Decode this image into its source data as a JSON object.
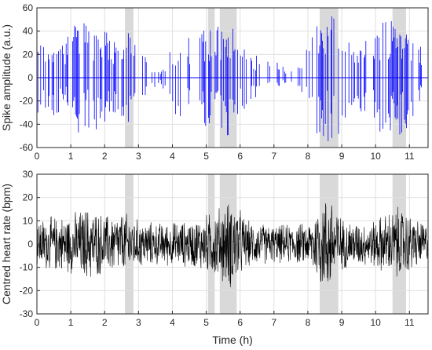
{
  "chart_data": [
    {
      "type": "line",
      "ylabel": "Spike amplitude (a.u.)",
      "xlim": [
        0,
        11.55
      ],
      "ylim": [
        -60,
        60
      ],
      "xticks": [
        "0",
        "1",
        "2",
        "3",
        "4",
        "5",
        "6",
        "7",
        "8",
        "9",
        "10",
        "11"
      ],
      "yticks": [
        "-60",
        "-40",
        "-20",
        "0",
        "20",
        "40",
        "60"
      ],
      "grid": true,
      "series": [
        {
          "color": "#0000ff",
          "style": "spike stems around baseline 0"
        }
      ],
      "shaded_intervals_h": [
        [
          2.6,
          2.85
        ],
        [
          5.05,
          5.25
        ],
        [
          5.4,
          5.9
        ],
        [
          8.35,
          8.9
        ],
        [
          10.5,
          10.9
        ]
      ],
      "activity_profile": {
        "x_h": [
          0.1,
          0.8,
          1.0,
          1.5,
          2.0,
          2.3,
          2.6,
          2.9,
          3.3,
          3.6,
          4.0,
          4.6,
          4.9,
          5.1,
          5.3,
          5.6,
          6.0,
          6.5,
          7.0,
          7.6,
          8.0,
          8.3,
          8.6,
          8.9,
          9.3,
          9.8,
          10.2,
          10.5,
          10.8,
          11.2,
          11.55
        ],
        "envelope": [
          30,
          35,
          45,
          50,
          45,
          30,
          45,
          30,
          15,
          5,
          30,
          40,
          40,
          45,
          45,
          55,
          30,
          20,
          15,
          5,
          30,
          50,
          55,
          50,
          25,
          35,
          50,
          55,
          50,
          40,
          20
        ]
      }
    },
    {
      "type": "line",
      "xlabel": "Time (h)",
      "ylabel": "Centred heart rate (bpm)",
      "xlim": [
        0,
        11.55
      ],
      "ylim": [
        -30,
        30
      ],
      "xticks": [
        "0",
        "1",
        "2",
        "3",
        "4",
        "5",
        "6",
        "7",
        "8",
        "9",
        "10",
        "11"
      ],
      "yticks": [
        "-30",
        "-20",
        "-10",
        "0",
        "10",
        "20",
        "30"
      ],
      "grid": true,
      "series": [
        {
          "color": "#000000",
          "style": "dense noisy trace around 0"
        }
      ],
      "shaded_intervals_h": [
        [
          2.6,
          2.85
        ],
        [
          5.05,
          5.25
        ],
        [
          5.4,
          5.9
        ],
        [
          8.35,
          8.9
        ],
        [
          10.5,
          10.9
        ]
      ],
      "activity_profile": {
        "x_h": [
          0,
          1.0,
          1.5,
          2.0,
          2.6,
          2.9,
          3.5,
          4.5,
          5.0,
          5.4,
          5.8,
          6.2,
          7.0,
          8.0,
          8.4,
          8.7,
          9.0,
          9.8,
          10.2,
          10.7,
          11.2,
          11.55
        ],
        "envelope": [
          12,
          14,
          18,
          14,
          15,
          12,
          10,
          11,
          14,
          18,
          22,
          11,
          9,
          10,
          22,
          24,
          12,
          10,
          14,
          18,
          12,
          10
        ]
      }
    }
  ]
}
